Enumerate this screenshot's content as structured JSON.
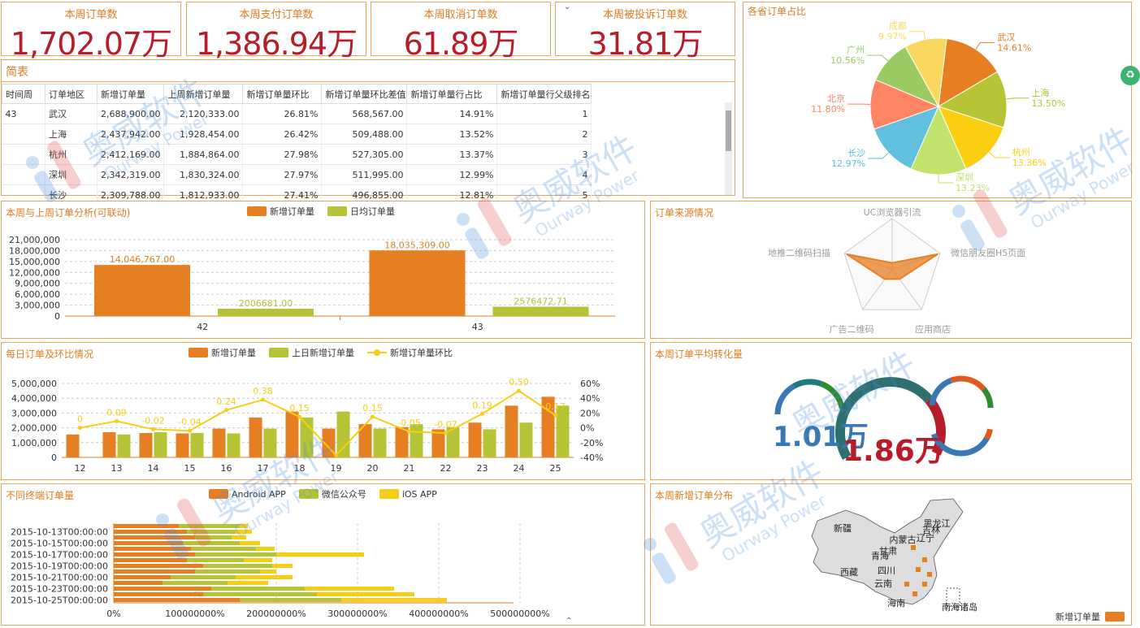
{
  "colors": {
    "orange": "#e67e22",
    "green": "#b5c334",
    "yellow": "#f7ce16",
    "title": "#e07b20",
    "kpi": "#b71c2a"
  },
  "kpis": [
    {
      "label": "本周订单数",
      "value": "1,702.07万"
    },
    {
      "label": "本周支付订单数",
      "value": "1,386.94万"
    },
    {
      "label": "本周取消订单数",
      "value": "61.89万"
    },
    {
      "label": "本周被投诉订单数",
      "value": "31.81万"
    }
  ],
  "table": {
    "title": "简表",
    "headers": [
      "时间周",
      "订单地区",
      "新增订单量",
      "上周新增订单量",
      "新增订单量环比",
      "新增订单量环比差值",
      "新增订单量行占比",
      "新增订单量行父级排名"
    ],
    "rows": [
      [
        "43",
        "武汉",
        "2,688,900.00",
        "2,120,333.00",
        "26.81%",
        "568,567.00",
        "14.91%",
        "1"
      ],
      [
        "",
        "上海",
        "2,437,942.00",
        "1,928,454.00",
        "26.42%",
        "509,488.00",
        "13.52%",
        "2"
      ],
      [
        "",
        "杭州",
        "2,412,169.00",
        "1,884,864.00",
        "27.98%",
        "527,305.00",
        "13.37%",
        "3"
      ],
      [
        "",
        "深圳",
        "2,342,319.00",
        "1,830,324.00",
        "27.97%",
        "511,995.00",
        "12.99%",
        "4"
      ],
      [
        "",
        "长沙",
        "2,309,788.00",
        "1,812,933.00",
        "27.41%",
        "496,855.00",
        "12.81%",
        "5"
      ]
    ]
  },
  "chart_data": [
    {
      "id": "pie",
      "type": "pie",
      "title": "各省订单占比",
      "slices": [
        {
          "name": "武汉",
          "value": 14.61,
          "label": "14.61%",
          "color": "#e67e22"
        },
        {
          "name": "上海",
          "value": 13.5,
          "label": "13.50%",
          "color": "#b5c334"
        },
        {
          "name": "杭州",
          "value": 13.36,
          "label": "13.36%",
          "color": "#fcce10"
        },
        {
          "name": "深圳",
          "value": 13.23,
          "label": "13.23%",
          "color": "#c1e26b"
        },
        {
          "name": "长沙",
          "value": 12.97,
          "label": "12.97%",
          "color": "#60c0dd"
        },
        {
          "name": "北京",
          "value": 11.8,
          "label": "11.80%",
          "color": "#fe8463"
        },
        {
          "name": "广州",
          "value": 10.56,
          "label": "10.56%",
          "color": "#9bca63"
        },
        {
          "name": "成都",
          "value": 9.97,
          "label": "9.97%",
          "color": "#fad860"
        }
      ]
    },
    {
      "id": "weekbar",
      "type": "bar",
      "title": "本周与上周订单分析(可联动)",
      "categories": [
        "42",
        "43"
      ],
      "series": [
        {
          "name": "新增订单量",
          "values": [
            14046767.0,
            18035309.0
          ],
          "labels": [
            "14,046,767.00",
            "18,035,309.00"
          ],
          "color": "#e67e22"
        },
        {
          "name": "日均订单量",
          "values": [
            2006681.0,
            2576472.71
          ],
          "labels": [
            "2006681.00",
            "2576472.71"
          ],
          "color": "#b5c334"
        }
      ],
      "yticks": [
        "0",
        "3,000,000",
        "6,000,000",
        "9,000,000",
        "12,000,000",
        "15,000,000",
        "18,000,000",
        "21,000,000"
      ],
      "ylim": [
        0,
        21000000
      ]
    },
    {
      "id": "radar",
      "type": "radar",
      "title": "订单来源情况",
      "indicators": [
        "UC浏览器引流",
        "微信朋友圈H5页面",
        "应用商店",
        "广告二维码",
        "地推二维码扫描"
      ],
      "values": [
        0.12,
        0.95,
        0.25,
        0.25,
        0.95
      ]
    },
    {
      "id": "daily",
      "type": "bar",
      "title": "每日订单及环比情况",
      "categories": [
        "12",
        "13",
        "14",
        "15",
        "16",
        "17",
        "18",
        "19",
        "20",
        "21",
        "22",
        "23",
        "24",
        "25"
      ],
      "series": [
        {
          "name": "新增订单量",
          "values": [
            1550000,
            1700000,
            1650000,
            1620000,
            1950000,
            2700000,
            3100000,
            1950000,
            2250000,
            2050000,
            1900000,
            2350000,
            3500000,
            4100000
          ],
          "color": "#e67e22"
        },
        {
          "name": "上日新增订单量",
          "values": [
            0,
            1550000,
            1700000,
            1650000,
            1620000,
            1950000,
            2700000,
            3100000,
            1950000,
            2250000,
            2050000,
            1900000,
            2350000,
            3500000
          ],
          "color": "#b5c334"
        },
        {
          "name": "新增订单量环比",
          "type": "line",
          "values": [
            0,
            0.09,
            -0.02,
            -0.04,
            0.24,
            0.38,
            0.15,
            -0.37,
            0.15,
            -0.05,
            -0.07,
            0.19,
            0.5,
            0.17
          ],
          "labels": [
            "0",
            "0.09",
            "-0.02",
            "-0.04",
            "0.24",
            "0.38",
            "0.15",
            "",
            "0.15",
            "-0.05",
            "-0.07",
            "0.19",
            "0.50",
            "0.17"
          ],
          "color": "#f7ce16"
        }
      ],
      "yticks": [
        "0",
        "1,000,000",
        "2,000,000",
        "3,000,000",
        "4,000,000",
        "5,000,000"
      ],
      "y2ticks": [
        "-40%",
        "-20%",
        "0%",
        "20%",
        "40%",
        "60%"
      ],
      "ylim": [
        0,
        5000000
      ],
      "y2lim": [
        -0.4,
        0.6
      ]
    },
    {
      "id": "gauge",
      "type": "gauge",
      "title": "本周订单平均转化量",
      "values": [
        "1.01万",
        "1.86万"
      ]
    },
    {
      "id": "terminal",
      "type": "bar",
      "title": "不同终端订单量",
      "categories": [
        "2015-10-13T00:00:00",
        "2015-10-15T00:00:00",
        "2015-10-17T00:00:00",
        "2015-10-19T00:00:00",
        "2015-10-21T00:00:00",
        "2015-10-23T00:00:00",
        "2015-10-25T00:00:00"
      ],
      "series": [
        {
          "name": "Android APP",
          "color": "#e67e22"
        },
        {
          "name": "微信公众号",
          "color": "#b5c334"
        },
        {
          "name": "iOS APP",
          "color": "#f7ce16"
        }
      ],
      "xticks": [
        "0%",
        "100000000%",
        "200000000%",
        "300000000%",
        "400000000%",
        "500000000%"
      ]
    },
    {
      "id": "map",
      "type": "map",
      "title": "本周新增订单分布",
      "regions": [
        "新疆",
        "西藏",
        "黑龙江",
        "吉林",
        "辽宁",
        "内蒙古",
        "甘肃",
        "青海",
        "四川",
        "云南",
        "海南",
        "南海诸岛"
      ],
      "legend": "新增订单量"
    }
  ],
  "watermark": {
    "brand": "奥威软件",
    "en": "Ourway Power"
  }
}
